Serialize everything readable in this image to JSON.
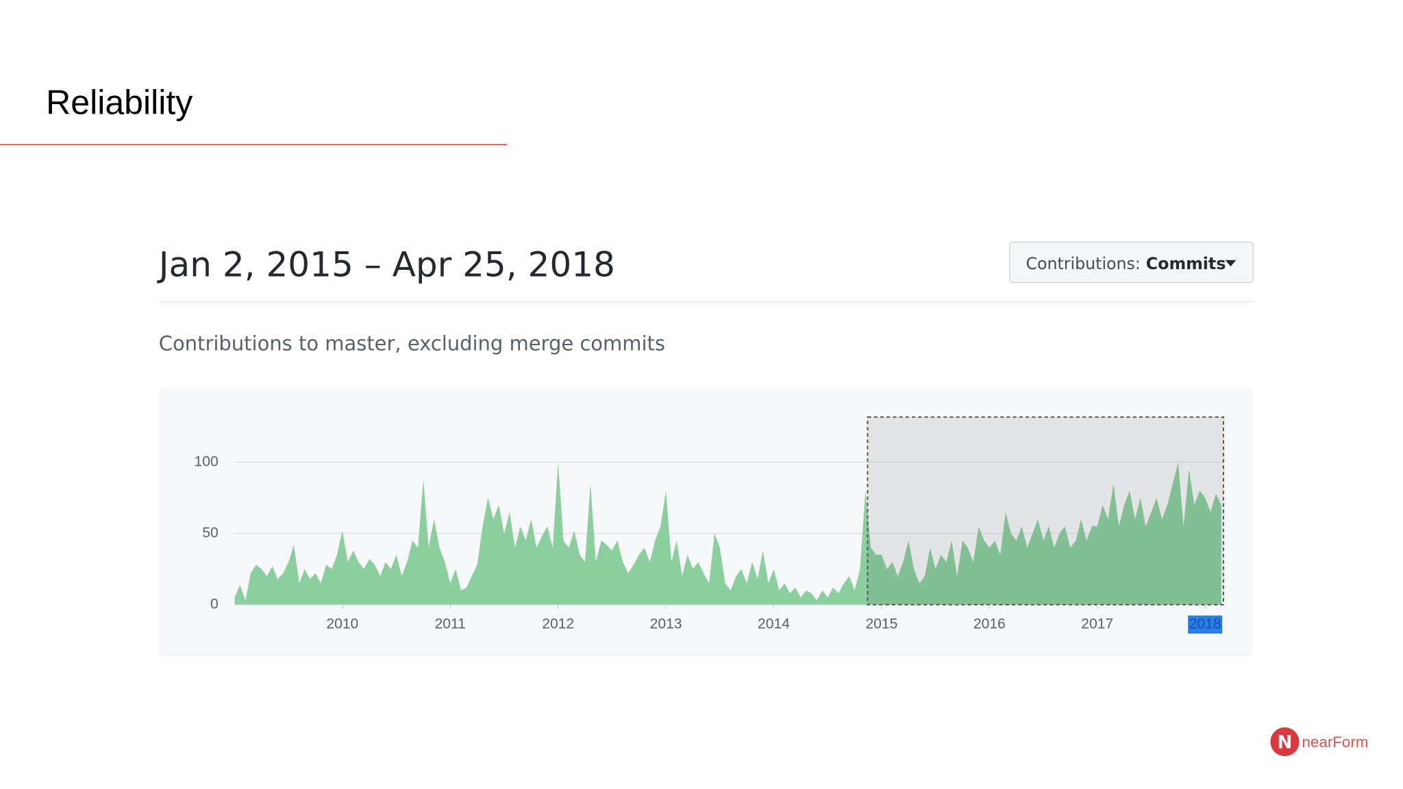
{
  "slide": {
    "title": "Reliability",
    "logo": "nearForm"
  },
  "header": {
    "date_range": "Jan 2, 2015 – Apr 25, 2018",
    "button_label": "Contributions:",
    "button_value": "Commits",
    "subtitle": "Contributions to master, excluding merge commits"
  },
  "chart_data": {
    "type": "area",
    "color": "#8ccf9f",
    "grid": true,
    "xlim": [
      2009,
      2018.17
    ],
    "xticks": [
      2010,
      2011,
      2012,
      2013,
      2014,
      2015,
      2016,
      2017,
      2018
    ],
    "ylim": [
      0,
      130
    ],
    "yticks": [
      0,
      50,
      100
    ],
    "selection": [
      2014.87,
      2018.17
    ],
    "x": [
      2009,
      2009.05,
      2009.1,
      2009.15,
      2009.2,
      2009.25,
      2009.3,
      2009.35,
      2009.4,
      2009.45,
      2009.5,
      2009.55,
      2009.6,
      2009.65,
      2009.7,
      2009.75,
      2009.8,
      2009.85,
      2009.9,
      2009.95,
      2010,
      2010.05,
      2010.1,
      2010.15,
      2010.2,
      2010.25,
      2010.3,
      2010.35,
      2010.4,
      2010.45,
      2010.5,
      2010.55,
      2010.6,
      2010.65,
      2010.7,
      2010.75,
      2010.8,
      2010.85,
      2010.9,
      2010.95,
      2011,
      2011.05,
      2011.1,
      2011.15,
      2011.2,
      2011.25,
      2011.3,
      2011.35,
      2011.4,
      2011.45,
      2011.5,
      2011.55,
      2011.6,
      2011.65,
      2011.7,
      2011.75,
      2011.8,
      2011.85,
      2011.9,
      2011.95,
      2012,
      2012.05,
      2012.1,
      2012.15,
      2012.2,
      2012.25,
      2012.3,
      2012.35,
      2012.4,
      2012.45,
      2012.5,
      2012.55,
      2012.6,
      2012.65,
      2012.7,
      2012.75,
      2012.8,
      2012.85,
      2012.9,
      2012.95,
      2013,
      2013.05,
      2013.1,
      2013.15,
      2013.2,
      2013.25,
      2013.3,
      2013.35,
      2013.4,
      2013.45,
      2013.5,
      2013.55,
      2013.6,
      2013.65,
      2013.7,
      2013.75,
      2013.8,
      2013.85,
      2013.9,
      2013.95,
      2014,
      2014.05,
      2014.1,
      2014.15,
      2014.2,
      2014.25,
      2014.3,
      2014.35,
      2014.4,
      2014.45,
      2014.5,
      2014.55,
      2014.6,
      2014.65,
      2014.7,
      2014.75,
      2014.8,
      2014.85,
      2014.9,
      2014.95,
      2015,
      2015.05,
      2015.1,
      2015.15,
      2015.2,
      2015.25,
      2015.3,
      2015.35,
      2015.4,
      2015.45,
      2015.5,
      2015.55,
      2015.6,
      2015.65,
      2015.7,
      2015.75,
      2015.8,
      2015.85,
      2015.9,
      2015.95,
      2016,
      2016.05,
      2016.1,
      2016.15,
      2016.2,
      2016.25,
      2016.3,
      2016.35,
      2016.4,
      2016.45,
      2016.5,
      2016.55,
      2016.6,
      2016.65,
      2016.7,
      2016.75,
      2016.8,
      2016.85,
      2016.9,
      2016.95,
      2017,
      2017.05,
      2017.1,
      2017.15,
      2017.2,
      2017.25,
      2017.3,
      2017.35,
      2017.4,
      2017.45,
      2017.5,
      2017.55,
      2017.6,
      2017.65,
      2017.7,
      2017.75,
      2017.8,
      2017.85,
      2017.9,
      2017.95,
      2018,
      2018.05,
      2018.1,
      2018.15
    ],
    "series": [
      {
        "name": "Commits",
        "values": [
          5,
          14,
          3,
          22,
          28,
          25,
          20,
          27,
          18,
          22,
          30,
          42,
          15,
          25,
          18,
          22,
          15,
          28,
          25,
          35,
          52,
          30,
          38,
          30,
          25,
          32,
          28,
          20,
          30,
          25,
          35,
          20,
          30,
          45,
          40,
          88,
          40,
          60,
          40,
          30,
          15,
          25,
          10,
          12,
          20,
          28,
          55,
          75,
          60,
          70,
          50,
          65,
          40,
          55,
          45,
          60,
          40,
          48,
          55,
          40,
          100,
          45,
          40,
          52,
          35,
          30,
          85,
          30,
          45,
          42,
          38,
          45,
          30,
          22,
          28,
          35,
          40,
          30,
          45,
          55,
          80,
          30,
          45,
          20,
          35,
          25,
          30,
          22,
          15,
          50,
          40,
          15,
          10,
          20,
          25,
          15,
          30,
          18,
          38,
          15,
          25,
          10,
          15,
          8,
          12,
          5,
          10,
          8,
          3,
          10,
          5,
          12,
          8,
          15,
          20,
          10,
          25,
          80,
          40,
          35,
          35,
          25,
          30,
          20,
          30,
          45,
          25,
          15,
          20,
          40,
          25,
          35,
          30,
          45,
          20,
          45,
          40,
          30,
          55,
          45,
          40,
          45,
          35,
          65,
          50,
          45,
          55,
          40,
          50,
          60,
          45,
          55,
          40,
          50,
          55,
          40,
          45,
          60,
          45,
          55,
          55,
          70,
          60,
          85,
          55,
          70,
          80,
          60,
          75,
          55,
          65,
          75,
          60,
          70,
          85,
          100,
          55,
          95,
          70,
          80,
          75,
          65,
          78,
          70
        ]
      }
    ]
  }
}
